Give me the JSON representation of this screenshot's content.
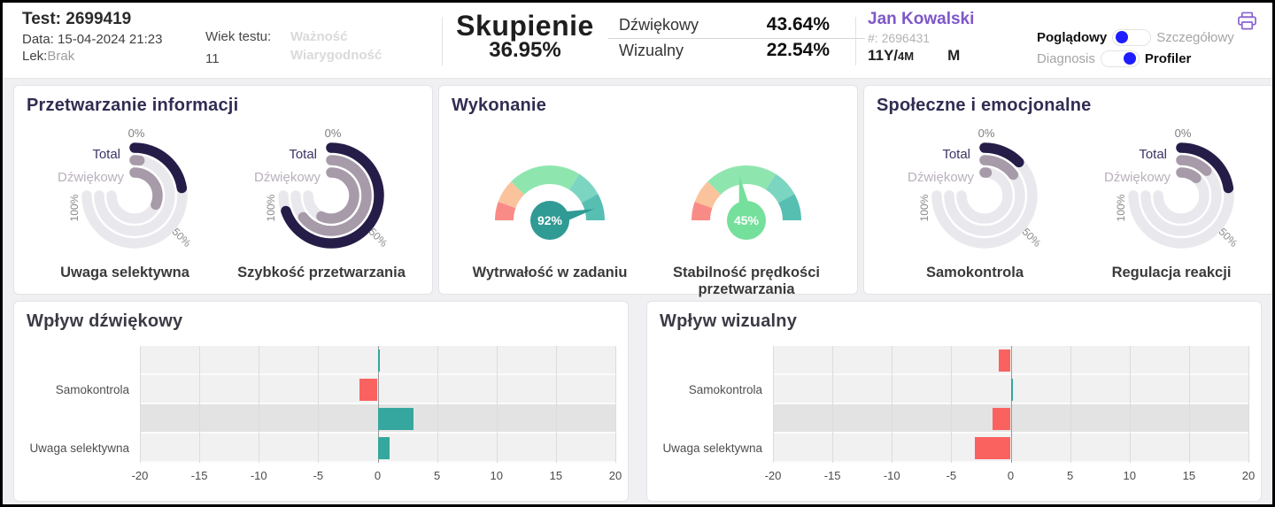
{
  "header": {
    "test_label": "Test: 2699419",
    "date_label": "Data: 15-04-2024 21:23",
    "med_label": "Lek:",
    "med_value": "Brak",
    "test_age_label": "Wiek testu:",
    "test_age_value": "11",
    "validity": "Ważność",
    "reliability": "Wiarygodność",
    "focus": {
      "title": "Skupienie",
      "total": "36.95%",
      "rows": [
        {
          "label": "Dźwiękowy",
          "value": "43.64%"
        },
        {
          "label": "Wizualny",
          "value": "22.54%"
        }
      ]
    },
    "patient": {
      "name": "Jan Kowalski",
      "id": "#: 2696431",
      "age_years": "11Y/",
      "age_months": "4M",
      "sex": "M"
    },
    "toggles": [
      {
        "left": "Poglądowy",
        "right": "Szczegółowy",
        "active": "left"
      },
      {
        "left": "Diagnosis",
        "right": "Profiler",
        "active": "right"
      }
    ]
  },
  "panels": {
    "processing": {
      "title": "Przetwarzanie informacji"
    },
    "execution": {
      "title": "Wykonanie"
    },
    "social": {
      "title": "Społeczne i emocjonalne"
    }
  },
  "colors": {
    "accent_purple": "#7e57c8",
    "toggle_blue": "#1d1dff",
    "ring_dark": "#251d48",
    "ring_mauve": "#a79aa9",
    "ring_track": "#e9e8ec",
    "label_dark": "#3a3563",
    "label_muted": "#b9b0bc",
    "bar_positive": "#35a79e",
    "bar_negative": "#fa625f",
    "row_bg": "#f1f1f1",
    "row_bg_highlight": "#e3e3e3"
  },
  "chart_data": [
    {
      "type": "radial",
      "caption": "Uwaga selektywna",
      "scale_labels": {
        "zero": "0%",
        "fifty": "50%",
        "hundred": "100%"
      },
      "span_deg": 270,
      "max": 100,
      "rings": [
        {
          "label": "Total",
          "value": 30
        },
        {
          "label": "Dźwiękowy",
          "value": 3
        },
        {
          "label": "",
          "value": 42
        }
      ]
    },
    {
      "type": "radial",
      "caption": "Szybkość przetwarzania",
      "scale_labels": {
        "zero": "0%",
        "fifty": "50%",
        "hundred": "100%"
      },
      "span_deg": 270,
      "max": 100,
      "rings": [
        {
          "label": "Total",
          "value": 93
        },
        {
          "label": "Dźwiękowy",
          "value": 86
        },
        {
          "label": "",
          "value": 76
        }
      ]
    },
    {
      "type": "gauge",
      "caption": "Wytrwałość w zadaniu",
      "value": 92,
      "value_label": "92%",
      "needle_color": "#2f9b94",
      "segments": [
        {
          "from": 0,
          "to": 11,
          "color": "#f98b87"
        },
        {
          "from": 11,
          "to": 25,
          "color": "#fbc39c"
        },
        {
          "from": 25,
          "to": 68,
          "color": "#8ee6ae"
        },
        {
          "from": 68,
          "to": 84,
          "color": "#7cd5c1"
        },
        {
          "from": 84,
          "to": 100,
          "color": "#57bfb2"
        }
      ]
    },
    {
      "type": "gauge",
      "caption": "Stabilność prędkości przetwarzania",
      "value": 45,
      "value_label": "45%",
      "needle_color": "#75df9c",
      "segments": [
        {
          "from": 0,
          "to": 11,
          "color": "#f98b87"
        },
        {
          "from": 11,
          "to": 25,
          "color": "#fbc39c"
        },
        {
          "from": 25,
          "to": 68,
          "color": "#8ee6ae"
        },
        {
          "from": 68,
          "to": 84,
          "color": "#7cd5c1"
        },
        {
          "from": 84,
          "to": 100,
          "color": "#57bfb2"
        }
      ]
    },
    {
      "type": "radial",
      "caption": "Samokontrola",
      "scale_labels": {
        "zero": "0%",
        "fifty": "50%",
        "hundred": "100%"
      },
      "span_deg": 270,
      "max": 100,
      "rings": [
        {
          "label": "Total",
          "value": 17
        },
        {
          "label": "Dźwiękowy",
          "value": 20
        },
        {
          "label": "",
          "value": 2
        }
      ]
    },
    {
      "type": "radial",
      "caption": "Regulacja reakcji",
      "scale_labels": {
        "zero": "0%",
        "fifty": "50%",
        "hundred": "100%"
      },
      "span_deg": 270,
      "max": 100,
      "rings": [
        {
          "label": "Total",
          "value": 30
        },
        {
          "label": "Dźwiękowy",
          "value": 17
        },
        {
          "label": "",
          "value": 15
        }
      ]
    },
    {
      "type": "bar",
      "title": "Wpływ dźwiękowy",
      "orientation": "horizontal",
      "xlim": [
        -20,
        20
      ],
      "xticks": [
        -20,
        -15,
        -10,
        -5,
        0,
        5,
        10,
        15,
        20
      ],
      "highlight_row": 2,
      "rows": [
        {
          "label": "",
          "value": 0.1
        },
        {
          "label": "Samokontrola",
          "value": -1.5
        },
        {
          "label": "",
          "value": 3
        },
        {
          "label": "Uwaga selektywna",
          "value": 1
        }
      ]
    },
    {
      "type": "bar",
      "title": "Wpływ wizualny",
      "orientation": "horizontal",
      "xlim": [
        -20,
        20
      ],
      "xticks": [
        -20,
        -15,
        -10,
        -5,
        0,
        5,
        10,
        15,
        20
      ],
      "highlight_row": 2,
      "rows": [
        {
          "label": "",
          "value": -1
        },
        {
          "label": "Samokontrola",
          "value": 0.1
        },
        {
          "label": "",
          "value": -1.5
        },
        {
          "label": "Uwaga selektywna",
          "value": -3
        }
      ]
    }
  ]
}
